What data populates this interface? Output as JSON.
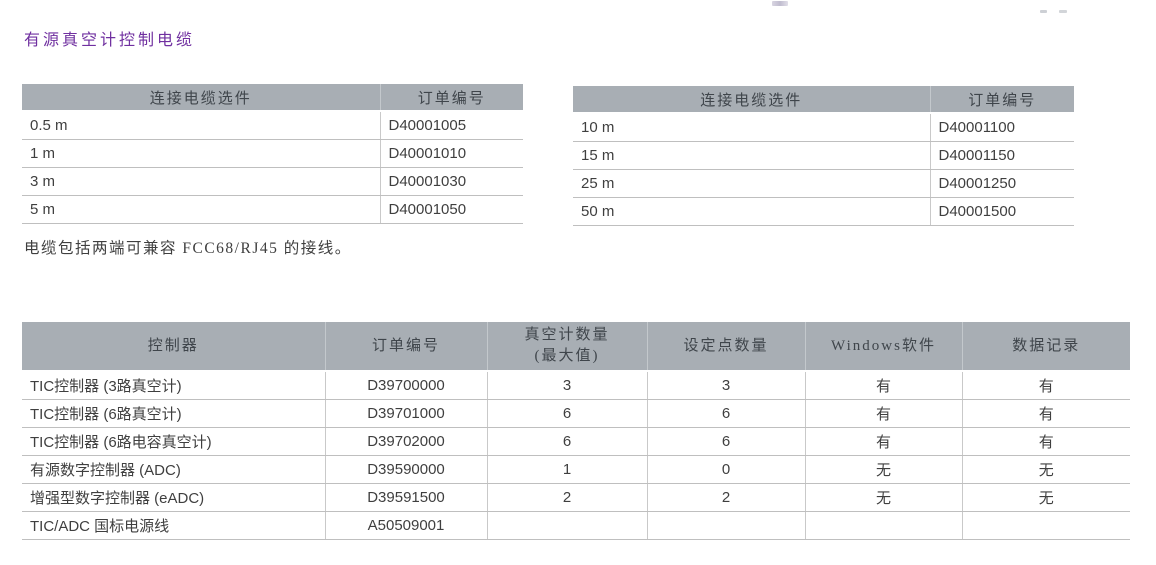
{
  "page_title": "有源真空计控制电缆",
  "note": "电缆包括两端可兼容 FCC68/RJ45 的接线。",
  "colors": {
    "title": "#7030A0",
    "header_bg": "#A8AEB4",
    "header_text": "#3F454B",
    "body_text": "#3F3F3F",
    "row_border": "#BFBFBF"
  },
  "cable_tables": {
    "left": {
      "headers": [
        "连接电缆选件",
        "订单编号"
      ],
      "rows": [
        [
          "0.5 m",
          "D40001005"
        ],
        [
          "1 m",
          "D40001010"
        ],
        [
          "3 m",
          "D40001030"
        ],
        [
          "5 m",
          "D40001050"
        ]
      ]
    },
    "right": {
      "headers": [
        "连接电缆选件",
        "订单编号"
      ],
      "rows": [
        [
          "10 m",
          "D40001100"
        ],
        [
          "15 m",
          "D40001150"
        ],
        [
          "25 m",
          "D40001250"
        ],
        [
          "50 m",
          "D40001500"
        ]
      ]
    }
  },
  "controller_table": {
    "headers": [
      "控制器",
      "订单编号",
      "真空计数量\n(最大值)",
      "设定点数量",
      "Windows软件",
      "数据记录"
    ],
    "rows": [
      [
        "TIC控制器 (3路真空计)",
        "D39700000",
        "3",
        "3",
        "有",
        "有"
      ],
      [
        "TIC控制器 (6路真空计)",
        "D39701000",
        "6",
        "6",
        "有",
        "有"
      ],
      [
        "TIC控制器 (6路电容真空计)",
        "D39702000",
        "6",
        "6",
        "有",
        "有"
      ],
      [
        "有源数字控制器 (ADC)",
        "D39590000",
        "1",
        "0",
        "无",
        "无"
      ],
      [
        "增强型数字控制器 (eADC)",
        "D39591500",
        "2",
        "2",
        "无",
        "无"
      ],
      [
        "TIC/ADC 国标电源线",
        "A50509001",
        "",
        "",
        "",
        ""
      ]
    ]
  }
}
